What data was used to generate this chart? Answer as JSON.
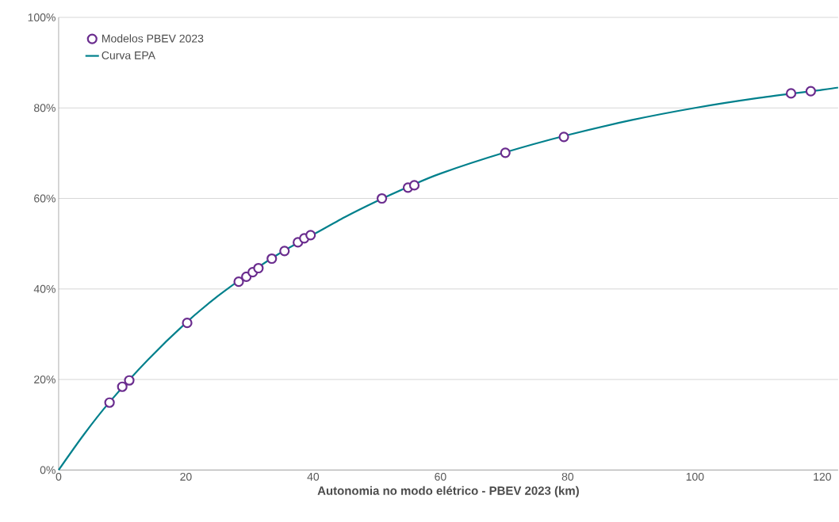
{
  "chart_data": {
    "type": "scatter",
    "xlabel": "Autonomia no modo elétrico - PBEV 2023 (km)",
    "xlim": [
      0,
      122.5
    ],
    "ylim": [
      0,
      100
    ],
    "xticks": [
      0,
      20,
      40,
      60,
      80,
      100,
      120
    ],
    "yticks": [
      {
        "value": 0,
        "label": "0%"
      },
      {
        "value": 20,
        "label": "20%"
      },
      {
        "value": 40,
        "label": "40%"
      },
      {
        "value": 60,
        "label": "60%"
      },
      {
        "value": 80,
        "label": "80%"
      },
      {
        "value": 100,
        "label": "100%"
      }
    ],
    "grid": "y",
    "legend": "top left",
    "series": [
      {
        "name": "Curva EPA",
        "type": "line",
        "marker": "none",
        "color": "#00808c",
        "x": [
          0,
          4,
          8,
          14,
          20,
          25,
          30,
          35,
          40,
          45,
          50,
          55,
          60,
          70,
          80,
          90,
          100,
          110,
          120,
          122.5
        ],
        "values": [
          0,
          7.9,
          15,
          24.3,
          32.5,
          38.4,
          43.5,
          48.1,
          52,
          55.9,
          59.4,
          62.6,
          65.5,
          70.1,
          74,
          77.3,
          80,
          82.2,
          84,
          84.5
        ]
      },
      {
        "name": "Modelos PBEV 2023",
        "marker": "circle",
        "color": "#6a2c8e",
        "x": [
          8,
          10,
          11.1,
          20.2,
          28.3,
          29.5,
          30.5,
          31.4,
          33.5,
          35.5,
          37.6,
          38.6,
          39.6,
          50.8,
          54.9,
          55.9,
          70.2,
          79.4,
          115.1,
          118.2
        ],
        "values": [
          14.9,
          18.4,
          19.8,
          32.5,
          41.6,
          42.7,
          43.7,
          44.6,
          46.7,
          48.4,
          50.3,
          51.2,
          51.9,
          60,
          62.4,
          62.9,
          70.1,
          73.6,
          83.2,
          83.7
        ]
      }
    ]
  }
}
